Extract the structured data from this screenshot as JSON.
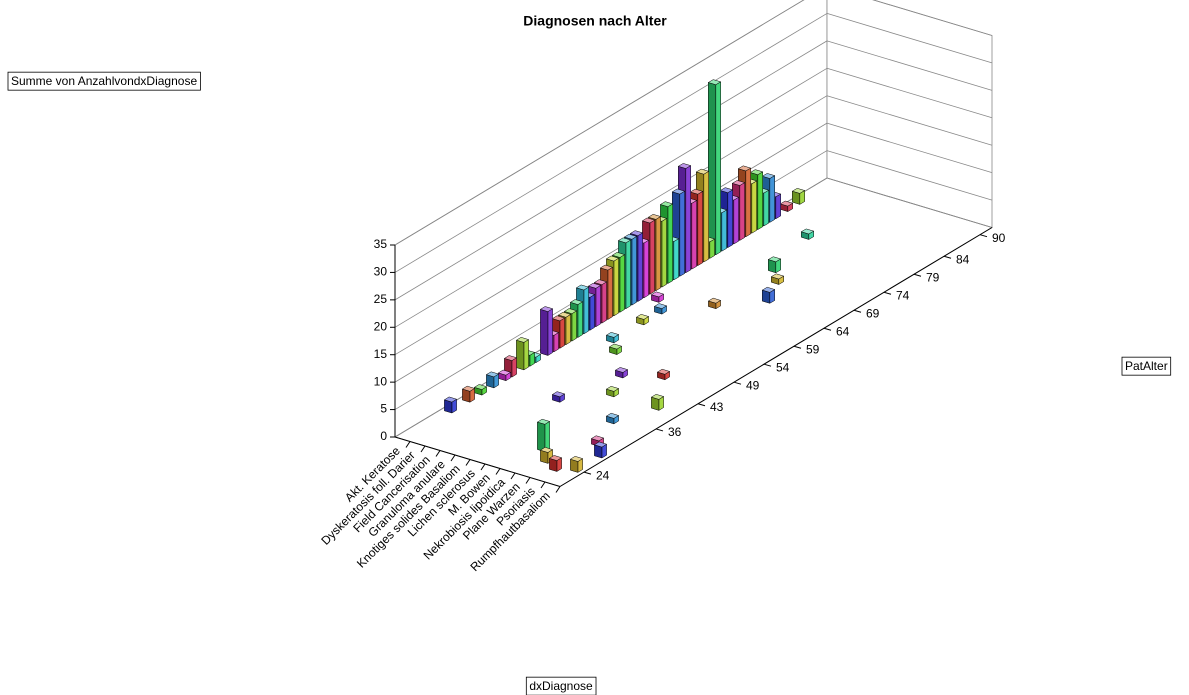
{
  "chart_data": {
    "type": "bar3d",
    "title": "Diagnosen nach Alter",
    "y_axis_title": "Summe von AnzahlvondxDiagnose",
    "x_axis_title": "PatAlter",
    "category_axis_title": "dxDiagnose",
    "ylim": [
      0,
      35
    ],
    "yticks": [
      0,
      5,
      10,
      15,
      20,
      25,
      30,
      35
    ],
    "xlim": [
      20,
      92
    ],
    "xticks": [
      24,
      36,
      43,
      49,
      54,
      59,
      64,
      69,
      74,
      79,
      84,
      90
    ],
    "grid": true,
    "series": [
      {
        "name": "Akt. Keratose",
        "x": [
          28,
          31,
          33,
          35,
          37,
          38,
          40,
          41,
          42,
          44,
          45,
          46,
          47,
          48,
          49,
          50,
          51,
          52,
          53,
          54,
          55,
          56,
          57,
          58,
          59,
          60,
          61,
          62,
          63,
          64,
          65,
          66,
          67,
          68,
          69,
          70,
          71,
          72,
          73,
          74,
          75,
          76,
          77,
          78,
          79,
          80,
          81,
          82,
          84,
          86
        ],
        "values": [
          2,
          2,
          1,
          2,
          1,
          3,
          5,
          2,
          1,
          8,
          3,
          5,
          5,
          5,
          6,
          8,
          6,
          7,
          7,
          9,
          10,
          10,
          12,
          12,
          12,
          10,
          13,
          13,
          12,
          14,
          7,
          15,
          19,
          12,
          13,
          16,
          3,
          31,
          7,
          10,
          8,
          10,
          12,
          9,
          10,
          6,
          8,
          4,
          1,
          2
        ]
      },
      {
        "name": "Dyskeratosis foll. Darier",
        "x": [
          60
        ],
        "values": [
          1
        ]
      },
      {
        "name": "Field Cancerisation",
        "x": [
          50,
          55,
          58
        ],
        "values": [
          1,
          1,
          1
        ]
      },
      {
        "name": "Granuloma anulare",
        "x": [
          48,
          80
        ],
        "values": [
          1,
          1
        ]
      },
      {
        "name": "Knotiges solides Basaliom",
        "x": [
          36,
          62,
          72
        ],
        "values": [
          1,
          1,
          2
        ]
      },
      {
        "name": "Lichen sclerosus",
        "x": [
          44,
          70
        ],
        "values": [
          1,
          1
        ]
      },
      {
        "name": "M. Bowen",
        "x": [
          40,
          66
        ],
        "values": [
          1,
          2
        ]
      },
      {
        "name": "Nekrobiosis lipoidica",
        "x": [
          26,
          46
        ],
        "values": [
          5,
          1
        ]
      },
      {
        "name": "Plane Warzen",
        "x": [
          24,
          35
        ],
        "values": [
          2,
          1
        ]
      },
      {
        "name": "Psoriasis",
        "x": [
          23,
          30,
          40
        ],
        "values": [
          2,
          1,
          2
        ]
      },
      {
        "name": "Rumpfhautbasaliom",
        "x": [
          24,
          28
        ],
        "values": [
          2,
          2
        ]
      }
    ]
  }
}
